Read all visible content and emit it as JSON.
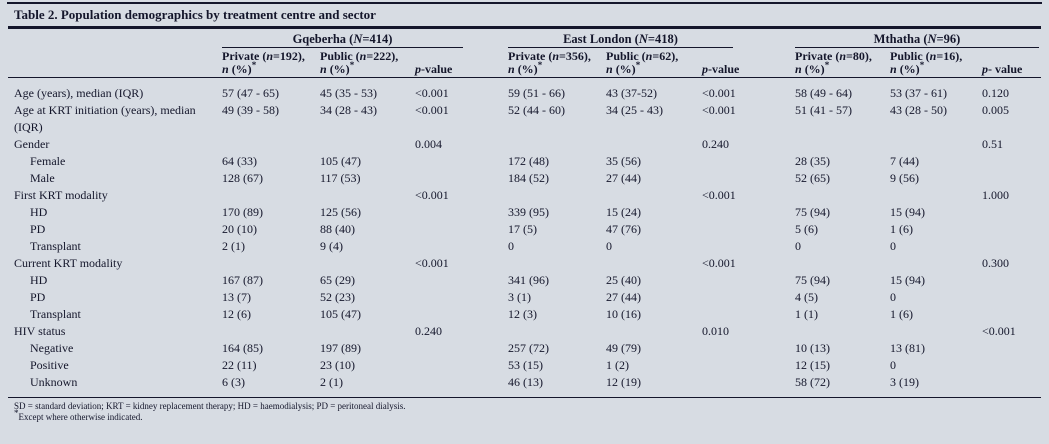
{
  "title": "Table 2. Population demographics by treatment centre and sector",
  "colors": {
    "background": "#d7dce3",
    "ink": "#14162b"
  },
  "colhead_line2": {
    "it": "n",
    "post": " (%)",
    "sup": "*"
  },
  "groups": [
    {
      "name_pre": "Gqeberha (",
      "name_italic": "N",
      "name_post": "=414)",
      "col1": {
        "pre": "Private (",
        "it": "n",
        "post": "=192),"
      },
      "col2": {
        "pre": "Public (",
        "it": "n",
        "post": "=222),"
      },
      "pvalue": {
        "it": "p",
        "post": "-value"
      }
    },
    {
      "name_pre": "East London (",
      "name_italic": "N",
      "name_post": "=418)",
      "col1": {
        "pre": "Private (",
        "it": "n",
        "post": "=356),"
      },
      "col2": {
        "pre": "Public (",
        "it": "n",
        "post": "=62),"
      },
      "pvalue": {
        "it": "p",
        "post": "-value"
      }
    },
    {
      "name_pre": "Mthatha (",
      "name_italic": "N",
      "name_post": "=96)",
      "col1": {
        "pre": "Private (",
        "it": "n",
        "post": "=80),"
      },
      "col2": {
        "pre": "Public (",
        "it": "n",
        "post": "=16),"
      },
      "pvalue": {
        "it": "p",
        "post": "- value"
      }
    }
  ],
  "rows": [
    {
      "label": "Age (years), median (IQR)",
      "indent": false,
      "cells": [
        "57 (47 - 65)",
        "45 (35 - 53)",
        "<0.001",
        "59 (51 - 66)",
        "43 (37-52)",
        "<0.001",
        "58 (49 - 64)",
        "53 (37 - 61)",
        "0.120"
      ]
    },
    {
      "label": "Age at KRT initiation (years), median\n(IQR)",
      "indent": false,
      "cells": [
        "49 (39 - 58)",
        "34 (28 - 43)",
        "<0.001",
        "52 (44 - 60)",
        "34 (25 - 43)",
        "<0.001",
        "51 (41 - 57)",
        "43 (28 - 50)",
        "0.005"
      ]
    },
    {
      "label": "Gender",
      "indent": false,
      "cells": [
        "",
        "",
        "0.004",
        "",
        "",
        "0.240",
        "",
        "",
        "0.51"
      ]
    },
    {
      "label": "Female",
      "indent": true,
      "cells": [
        "64 (33)",
        "105 (47)",
        "",
        "172 (48)",
        "35 (56)",
        "",
        "28 (35)",
        "7 (44)",
        ""
      ]
    },
    {
      "label": "Male",
      "indent": true,
      "cells": [
        "128 (67)",
        "117 (53)",
        "",
        "184 (52)",
        "27 (44)",
        "",
        "52 (65)",
        "9 (56)",
        ""
      ]
    },
    {
      "label": "First KRT modality",
      "indent": false,
      "cells": [
        "",
        "",
        "<0.001",
        "",
        "",
        "<0.001",
        "",
        "",
        "1.000"
      ]
    },
    {
      "label": "HD",
      "indent": true,
      "cells": [
        "170 (89)",
        "125 (56)",
        "",
        "339 (95)",
        "15 (24)",
        "",
        "75 (94)",
        "15 (94)",
        ""
      ]
    },
    {
      "label": "PD",
      "indent": true,
      "cells": [
        "20 (10)",
        "88 (40)",
        "",
        "17 (5)",
        "47 (76)",
        "",
        "5 (6)",
        "1 (6)",
        ""
      ]
    },
    {
      "label": "Transplant",
      "indent": true,
      "cells": [
        "2 (1)",
        "9 (4)",
        "",
        "0",
        "0",
        "",
        "0",
        "0",
        ""
      ]
    },
    {
      "label": "Current KRT modality",
      "indent": false,
      "cells": [
        "",
        "",
        "<0.001",
        "",
        "",
        "<0.001",
        "",
        "",
        "0.300"
      ]
    },
    {
      "label": "HD",
      "indent": true,
      "cells": [
        "167 (87)",
        "65 (29)",
        "",
        "341 (96)",
        "25 (40)",
        "",
        "75 (94)",
        "15 (94)",
        ""
      ]
    },
    {
      "label": "PD",
      "indent": true,
      "cells": [
        "13 (7)",
        "52 (23)",
        "",
        "3 (1)",
        "27 (44)",
        "",
        "4 (5)",
        "0",
        ""
      ]
    },
    {
      "label": "Transplant",
      "indent": true,
      "cells": [
        "12 (6)",
        "105 (47)",
        "",
        "12 (3)",
        "10 (16)",
        "",
        "1 (1)",
        "1 (6)",
        ""
      ]
    },
    {
      "label": "HIV status",
      "indent": false,
      "cells": [
        "",
        "",
        "0.240",
        "",
        "",
        "0.010",
        "",
        "",
        "<0.001"
      ]
    },
    {
      "label": "Negative",
      "indent": true,
      "cells": [
        "164 (85)",
        "197 (89)",
        "",
        "257 (72)",
        "49 (79)",
        "",
        "10 (13)",
        "13 (81)",
        ""
      ]
    },
    {
      "label": "Positive",
      "indent": true,
      "cells": [
        "22 (11)",
        "23 (10)",
        "",
        "53 (15)",
        "1 (2)",
        "",
        "12 (15)",
        "0",
        ""
      ]
    },
    {
      "label": "Unknown",
      "indent": true,
      "cells": [
        "6 (3)",
        "2 (1)",
        "",
        "46 (13)",
        "12 (19)",
        "",
        "58 (72)",
        "3 (19)",
        ""
      ]
    }
  ],
  "footnotes": {
    "line1": "SD = standard deviation; KRT = kidney replacement therapy; HD = haemodialysis; PD = peritoneal dialysis.",
    "line2_sup": "*",
    "line2": "Except where otherwise indicated."
  }
}
